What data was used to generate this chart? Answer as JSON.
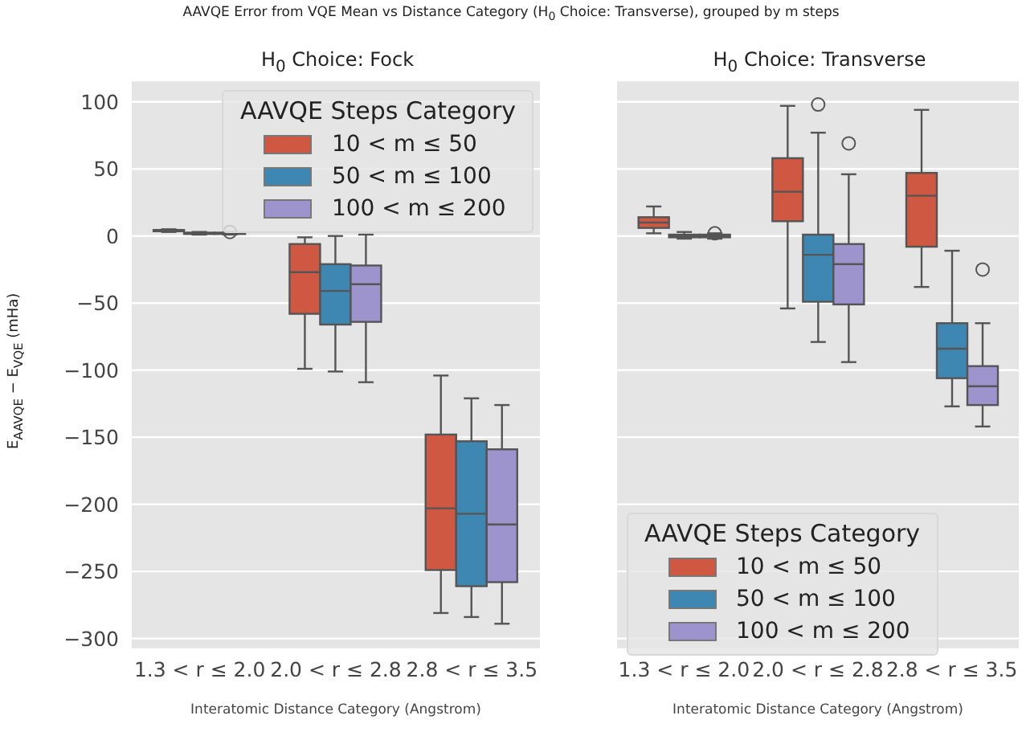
{
  "chart_data": [
    {
      "type": "box",
      "title": "H$_{0}$ Choice: Fock",
      "annotations": [
        "AAVQE Error from VQE Mean vs Distance Category (H$_{0}$ Choice: Transverse), grouped by m steps"
      ],
      "xlabel": "Interatomic Distance Category (Angstrom)",
      "ylabel": "E$_{AAVQE}$ − E$_{VQE}$ (mHa)",
      "legend_title": "AAVQE Steps Category",
      "legend": "top right",
      "grid": "y",
      "ylim": [
        -308,
        116
      ],
      "yticks": [
        100,
        50,
        0,
        -50,
        -100,
        -150,
        -200,
        -250,
        -300
      ],
      "categories": [
        "1.3 < r ≤ 2.0",
        "2.0 < r ≤ 2.8",
        "2.8 < r ≤ 3.5"
      ],
      "series": [
        {
          "name": "10 < m ≤ 50",
          "color": "#cf5843",
          "boxes": [
            {
              "low": 3,
              "q1": 3.5,
              "median": 4,
              "q3": 4.5,
              "high": 5
            },
            {
              "low": -99,
              "q1": -58,
              "median": -27,
              "q3": -6,
              "high": -1
            },
            {
              "low": -281,
              "q1": -249,
              "median": -203,
              "q3": -148,
              "high": -104
            }
          ]
        },
        {
          "name": "50 < m ≤ 100",
          "color": "#3f87b3",
          "boxes": [
            {
              "low": 1,
              "q1": 1.5,
              "median": 2,
              "q3": 2.5,
              "high": 3
            },
            {
              "low": -101,
              "q1": -66,
              "median": -41,
              "q3": -21,
              "high": 0
            },
            {
              "low": -284,
              "q1": -261,
              "median": -207,
              "q3": -153,
              "high": -121
            }
          ]
        },
        {
          "name": "100 < m ≤ 200",
          "color": "#9d93cd",
          "boxes": [
            {
              "low": 1,
              "q1": 1.5,
              "median": 2,
              "q3": 2.5,
              "high": 3,
              "outliers": [
                3
              ]
            },
            {
              "low": -109,
              "q1": -64,
              "median": -36,
              "q3": -22,
              "high": 1
            },
            {
              "low": -289,
              "q1": -258,
              "median": -215,
              "q3": -159,
              "high": -126
            }
          ]
        }
      ]
    },
    {
      "type": "box",
      "title": "H$_{0}$ Choice: Transverse",
      "xlabel": "Interatomic Distance Category (Angstrom)",
      "legend_title": "AAVQE Steps Category",
      "legend": "bottom left",
      "grid": "y",
      "tick_labels": "x",
      "ylim": [
        -308,
        116
      ],
      "yticks": [
        100,
        50,
        0,
        -50,
        -100,
        -150,
        -200,
        -250,
        -300
      ],
      "categories": [
        "1.3 < r ≤ 2.0",
        "2.0 < r ≤ 2.8",
        "2.8 < r ≤ 3.5"
      ],
      "series": [
        {
          "name": "10 < m ≤ 50",
          "color": "#cf5843",
          "boxes": [
            {
              "low": 2,
              "q1": 6,
              "median": 10,
              "q3": 14,
              "high": 22
            },
            {
              "low": -54,
              "q1": 11,
              "median": 33,
              "q3": 58,
              "high": 97
            },
            {
              "low": -38,
              "q1": -8,
              "median": 30,
              "q3": 47,
              "high": 94
            }
          ]
        },
        {
          "name": "50 < m ≤ 100",
          "color": "#3f87b3",
          "boxes": [
            {
              "low": -2,
              "q1": -1,
              "median": 0,
              "q3": 1,
              "high": 3
            },
            {
              "low": -79,
              "q1": -49,
              "median": -14,
              "q3": 1,
              "high": 77,
              "outliers": [
                98
              ]
            },
            {
              "low": -127,
              "q1": -106,
              "median": -84,
              "q3": -65,
              "high": -11
            }
          ]
        },
        {
          "name": "100 < m ≤ 200",
          "color": "#9d93cd",
          "boxes": [
            {
              "low": -2,
              "q1": -1,
              "median": 0,
              "q3": 1,
              "high": 2,
              "outliers": [
                2
              ]
            },
            {
              "low": -94,
              "q1": -51,
              "median": -21,
              "q3": -6,
              "high": 46,
              "outliers": [
                69
              ]
            },
            {
              "low": -142,
              "q1": -126,
              "median": -112,
              "q3": -97,
              "high": -65,
              "outliers": [
                -25
              ]
            }
          ]
        }
      ]
    }
  ]
}
